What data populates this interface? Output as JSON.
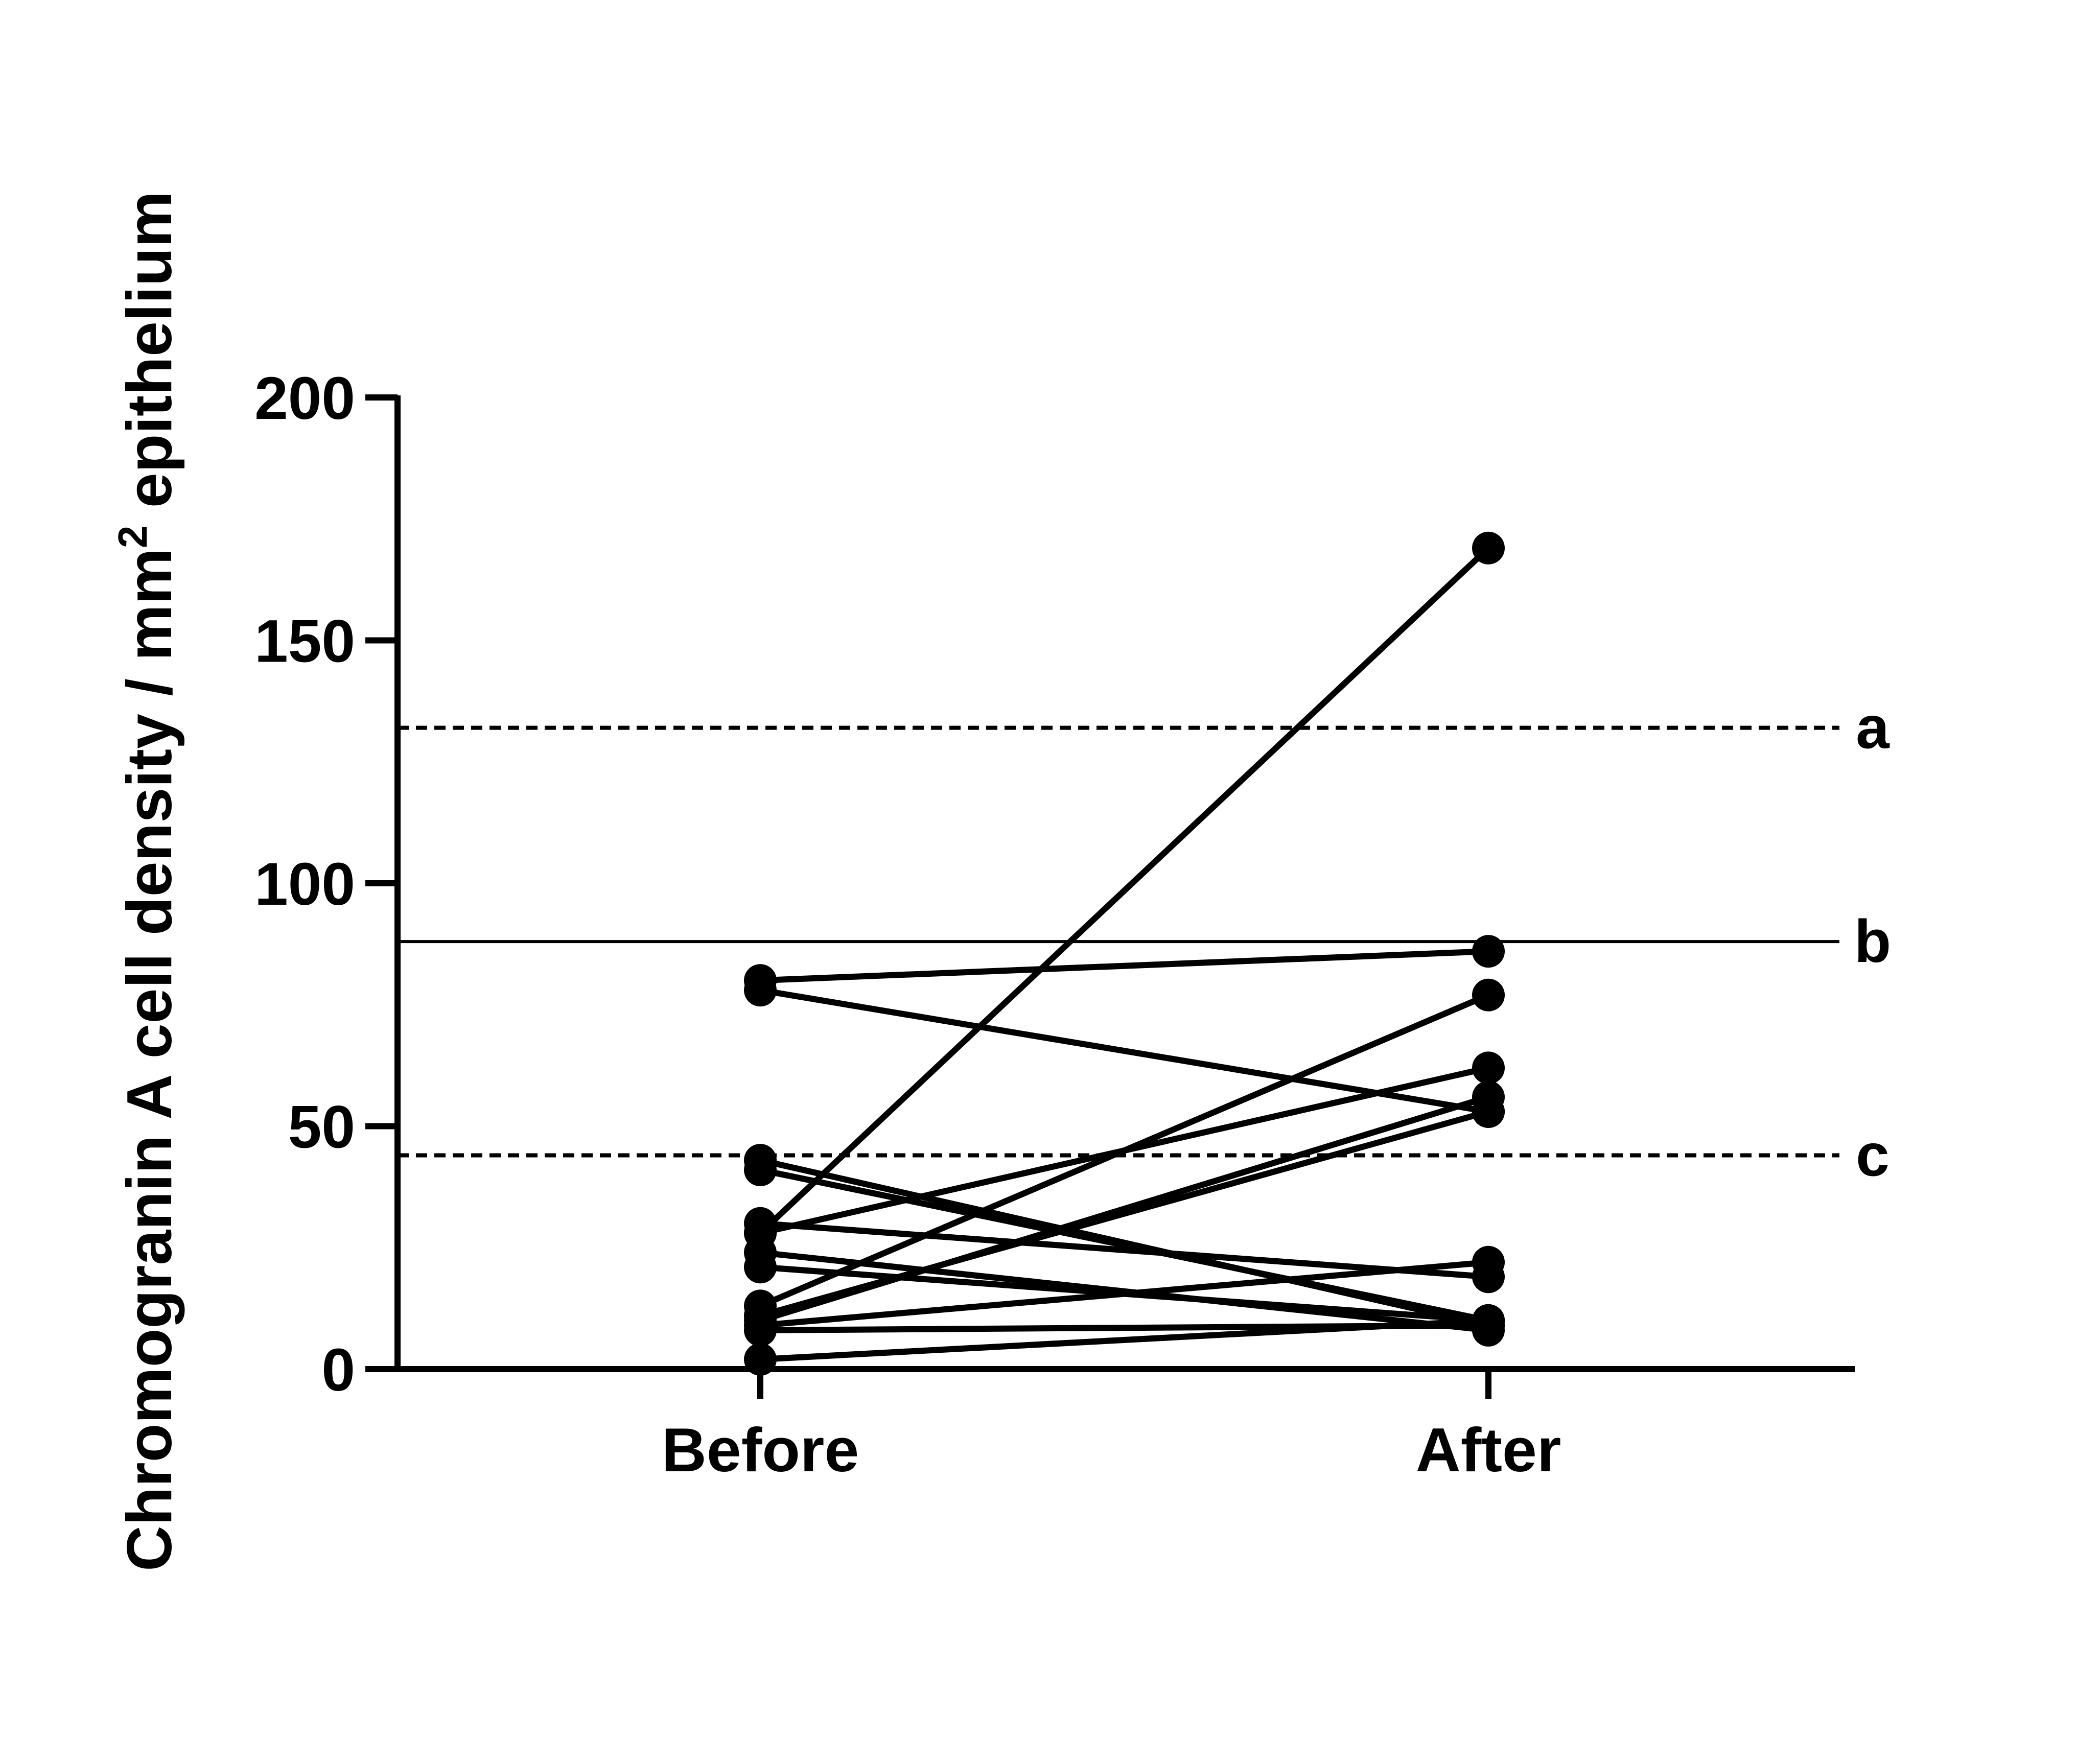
{
  "chart_data": {
    "type": "line",
    "ylabel": {
      "main": "Chromogranin A cell density / mm",
      "superscript": "2",
      "suffix": " epithelium"
    },
    "xlabel": "",
    "categories": [
      "Before",
      "After"
    ],
    "ylim": [
      0,
      200
    ],
    "yticks": [
      0,
      50,
      100,
      150,
      200
    ],
    "grid": false,
    "legend": "none",
    "series": [
      {
        "values": [
          28,
          169
        ]
      },
      {
        "values": [
          80,
          86
        ]
      },
      {
        "values": [
          78,
          53
        ]
      },
      {
        "values": [
          13,
          77
        ]
      },
      {
        "values": [
          28,
          62
        ]
      },
      {
        "values": [
          10,
          56
        ]
      },
      {
        "values": [
          11,
          53
        ]
      },
      {
        "values": [
          43,
          9
        ]
      },
      {
        "values": [
          41,
          10
        ]
      },
      {
        "values": [
          30,
          19
        ]
      },
      {
        "values": [
          24,
          8
        ]
      },
      {
        "values": [
          21,
          10
        ]
      },
      {
        "values": [
          9,
          22
        ]
      },
      {
        "values": [
          8,
          9
        ]
      },
      {
        "values": [
          2,
          10
        ]
      }
    ],
    "reference_lines": [
      {
        "label": "a",
        "value": 132,
        "style": "dashed"
      },
      {
        "label": "b",
        "value": 88,
        "style": "solid"
      },
      {
        "label": "c",
        "value": 44,
        "style": "dashed"
      }
    ],
    "colors": {
      "line": "#000000",
      "marker": "#000000",
      "axis": "#000000"
    }
  }
}
